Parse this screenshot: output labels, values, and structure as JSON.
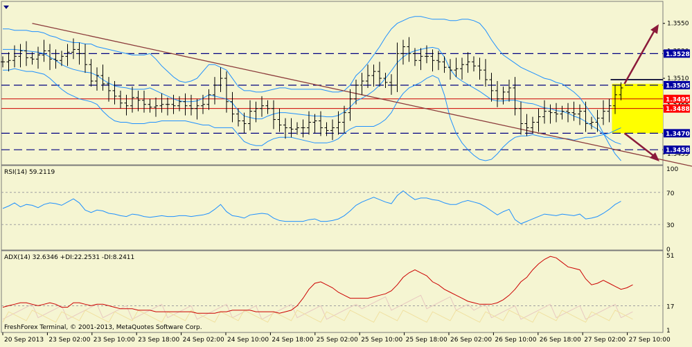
{
  "colors": {
    "background": "#f5f5d2",
    "panel_border": "#7a7a7a",
    "price": "#000000",
    "bollinger": "#1e90ff",
    "trendline": "#8b3a3a",
    "resistance_red": "#cc0000",
    "dashed_level": "#000080",
    "target_zone": "#ffff00",
    "arrow": "#8b1a3a",
    "rsi": "#1e90ff",
    "adx": "#cc0000",
    "plus_di": "#e8c8c0",
    "minus_di": "#f0e0a0",
    "price_tag_red": "#ff0000",
    "price_tag_blue": "#0000a0"
  },
  "chart_data": [
    {
      "type": "line",
      "panel": "price",
      "ylim": [
        1.3448,
        1.3565
      ],
      "y_ticks": [
        "1.3550",
        "1.3530",
        "1.3510",
        "1.3490",
        "1.3455"
      ],
      "x_labels": [
        "20 Sep 2013",
        "23 Sep 02:00",
        "23 Sep 10:00",
        "23 Sep 18:00",
        "24 Sep 02:00",
        "24 Sep 10:00",
        "24 Sep 18:00",
        "25 Sep 02:00",
        "25 Sep 10:00",
        "25 Sep 18:00",
        "26 Sep 02:00",
        "26 Sep 10:00",
        "26 Sep 18:00",
        "27 Sep 02:00",
        "27 Sep 10:00"
      ],
      "levels": [
        {
          "value": 1.3528,
          "label": "1.3528",
          "style": "dashed"
        },
        {
          "value": 1.3505,
          "label": "1.3505",
          "style": "dashed"
        },
        {
          "value": 1.3495,
          "label": "1.3495",
          "style": "red"
        },
        {
          "value": 1.3488,
          "label": "1.3488",
          "style": "red"
        },
        {
          "value": 1.347,
          "label": "1.3470",
          "style": "dashed"
        },
        {
          "value": 1.3458,
          "label": "1.3458",
          "style": "dashed"
        }
      ],
      "partial_tick": "1.3490",
      "close": [
        1.3522,
        1.3523,
        1.3526,
        1.353,
        1.3525,
        1.3524,
        1.3527,
        1.353,
        1.3524,
        1.3523,
        1.3526,
        1.3529,
        1.3531,
        1.3528,
        1.352,
        1.3508,
        1.3512,
        1.3506,
        1.3501,
        1.3497,
        1.3492,
        1.349,
        1.3496,
        1.3494,
        1.3491,
        1.3489,
        1.349,
        1.3491,
        1.3491,
        1.349,
        1.3493,
        1.349,
        1.3488,
        1.349,
        1.3491,
        1.3498,
        1.3505,
        1.351,
        1.3493,
        1.3484,
        1.3479,
        1.3477,
        1.3486,
        1.3488,
        1.349,
        1.3488,
        1.348,
        1.3476,
        1.3474,
        1.3473,
        1.3474,
        1.3474,
        1.3478,
        1.3479,
        1.3474,
        1.3472,
        1.3474,
        1.3478,
        1.3485,
        1.3495,
        1.3505,
        1.3508,
        1.3512,
        1.3515,
        1.351,
        1.3507,
        1.3505,
        1.3528,
        1.3533,
        1.3528,
        1.3523,
        1.3526,
        1.3526,
        1.3523,
        1.3522,
        1.3518,
        1.3516,
        1.3517,
        1.352,
        1.3522,
        1.3519,
        1.3516,
        1.3509,
        1.3501,
        1.3495,
        1.35,
        1.3503,
        1.3488,
        1.3477,
        1.3474,
        1.3478,
        1.3482,
        1.3486,
        1.3485,
        1.3484,
        1.3486,
        1.3485,
        1.3484,
        1.3486,
        1.3477,
        1.3478,
        1.3481,
        1.3486,
        1.349,
        1.3498,
        1.3503
      ],
      "bb_upper": [
        1.3546,
        1.3546,
        1.3545,
        1.3545,
        1.3545,
        1.3544,
        1.3544,
        1.3543,
        1.3541,
        1.354,
        1.3538,
        1.3537,
        1.3536,
        1.3536,
        1.3535,
        1.3535,
        1.3533,
        1.3532,
        1.3531,
        1.353,
        1.3529,
        1.3528,
        1.3527,
        1.3527,
        1.3527,
        1.3528,
        1.3524,
        1.3519,
        1.3515,
        1.3511,
        1.3508,
        1.3507,
        1.3508,
        1.351,
        1.3515,
        1.352,
        1.352,
        1.3518,
        1.3516,
        1.351,
        1.3504,
        1.3501,
        1.3501,
        1.35,
        1.35,
        1.3501,
        1.3502,
        1.3503,
        1.3503,
        1.3502,
        1.3502,
        1.3502,
        1.3502,
        1.3502,
        1.3502,
        1.3501,
        1.35,
        1.35,
        1.3501,
        1.3505,
        1.3512,
        1.3516,
        1.3521,
        1.3527,
        1.3533,
        1.354,
        1.3546,
        1.355,
        1.3552,
        1.3554,
        1.3555,
        1.3555,
        1.3554,
        1.3553,
        1.3553,
        1.3553,
        1.3552,
        1.3552,
        1.3553,
        1.3553,
        1.3552,
        1.355,
        1.3545,
        1.3538,
        1.3532,
        1.3527,
        1.3524,
        1.3521,
        1.3518,
        1.3516,
        1.3514,
        1.3512,
        1.351,
        1.3509,
        1.3507,
        1.3506,
        1.3503,
        1.35,
        1.3496,
        1.349,
        1.3484,
        1.3478,
        1.347,
        1.3462,
        1.3455,
        1.345
      ],
      "bb_lower": [
        1.3516,
        1.3516,
        1.3517,
        1.3516,
        1.3515,
        1.3515,
        1.3514,
        1.3513,
        1.351,
        1.3506,
        1.3502,
        1.3499,
        1.3497,
        1.3495,
        1.3494,
        1.3493,
        1.3491,
        1.3486,
        1.3482,
        1.3479,
        1.3478,
        1.3478,
        1.3477,
        1.3477,
        1.3477,
        1.3478,
        1.3478,
        1.3479,
        1.3479,
        1.3479,
        1.3479,
        1.3479,
        1.3478,
        1.3477,
        1.3476,
        1.3476,
        1.3474,
        1.3474,
        1.3474,
        1.3474,
        1.3469,
        1.3464,
        1.3462,
        1.3461,
        1.3461,
        1.3464,
        1.3466,
        1.3467,
        1.3467,
        1.3467,
        1.3466,
        1.3465,
        1.3464,
        1.3463,
        1.3463,
        1.3463,
        1.3464,
        1.3466,
        1.347,
        1.3473,
        1.3475,
        1.3475,
        1.3475,
        1.3475,
        1.3477,
        1.348,
        1.3485,
        1.3493,
        1.3499,
        1.3503,
        1.3505,
        1.3507,
        1.351,
        1.3512,
        1.351,
        1.3498,
        1.3481,
        1.347,
        1.3463,
        1.3458,
        1.3454,
        1.3451,
        1.345,
        1.3451,
        1.3455,
        1.346,
        1.3464,
        1.3467,
        1.3468,
        1.3468,
        1.3469,
        1.3468,
        1.3467,
        1.3467,
        1.3466,
        1.3466,
        1.3466,
        1.3465,
        1.3466,
        1.3467,
        1.3467,
        1.3468,
        1.3469,
        1.347,
        1.3472,
        1.3474
      ]
    },
    {
      "type": "line",
      "panel": "rsi",
      "title": "RSI(14) 59.2119",
      "ylim": [
        0,
        100
      ],
      "y_ticks": [
        "100",
        "70",
        "30",
        "0"
      ],
      "levels": [
        70,
        30
      ],
      "values": [
        50,
        53,
        57,
        52,
        55,
        54,
        51,
        55,
        57,
        56,
        54,
        58,
        62,
        57,
        48,
        45,
        48,
        47,
        44,
        43,
        41,
        40,
        43,
        42,
        40,
        39,
        40,
        41,
        40,
        40,
        41,
        41,
        40,
        41,
        42,
        44,
        49,
        55,
        46,
        41,
        40,
        38,
        42,
        43,
        44,
        43,
        38,
        35,
        34,
        34,
        34,
        34,
        36,
        37,
        34,
        34,
        35,
        37,
        41,
        47,
        54,
        58,
        61,
        64,
        61,
        58,
        56,
        66,
        72,
        66,
        61,
        63,
        63,
        61,
        60,
        57,
        55,
        55,
        58,
        60,
        58,
        56,
        52,
        47,
        42,
        46,
        49,
        36,
        31,
        34,
        37,
        40,
        43,
        42,
        41,
        43,
        42,
        41,
        43,
        37,
        38,
        40,
        44,
        49,
        55,
        59
      ]
    },
    {
      "type": "line",
      "panel": "adx",
      "title": "ADX(14) 32.6346 +DI:22.2531 -DI:8.2411",
      "ylim": [
        1,
        51
      ],
      "y_ticks": [
        "51",
        "17",
        "1"
      ],
      "levels": [
        17
      ],
      "adx": [
        16,
        17,
        18,
        19,
        19,
        18,
        17,
        18,
        19,
        18,
        16,
        16,
        19,
        19,
        18,
        17,
        18,
        18,
        17,
        16,
        15,
        15,
        15,
        14,
        14,
        14,
        13,
        13,
        13,
        13,
        13,
        13,
        13,
        12,
        12,
        12,
        12,
        13,
        13,
        14,
        14,
        14,
        14,
        13,
        13,
        13,
        13,
        12,
        13,
        14,
        17,
        22,
        28,
        32,
        33,
        31,
        29,
        26,
        24,
        22,
        22,
        22,
        22,
        23,
        24,
        25,
        27,
        31,
        36,
        39,
        41,
        39,
        37,
        33,
        31,
        28,
        26,
        24,
        22,
        20,
        19,
        18,
        18,
        18,
        19,
        21,
        24,
        28,
        33,
        36,
        41,
        45,
        48,
        50,
        49,
        46,
        43,
        42,
        41,
        35,
        31,
        32,
        34,
        32,
        30,
        28,
        29,
        31
      ]
    }
  ],
  "annotations": {
    "footer": "FreshForex Terminal, © 2001-2013, MetaQuotes Software Corp."
  }
}
